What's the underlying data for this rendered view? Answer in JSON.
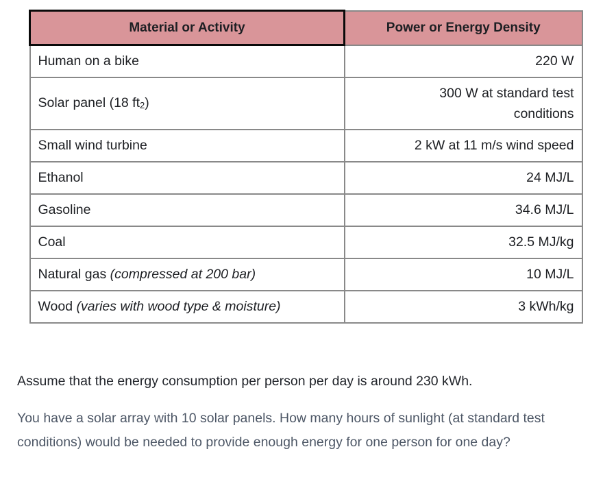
{
  "table": {
    "columns": [
      {
        "label": "Material or Activity"
      },
      {
        "label": "Power or Energy Density"
      }
    ],
    "rows": [
      {
        "material": "Human on a bike",
        "value": "220 W"
      },
      {
        "material": "Solar panel (18 ft",
        "material_sub": "2",
        "material_after": ")",
        "value": "300 W at standard test conditions"
      },
      {
        "material": "Small wind turbine",
        "value": "2 kW at 11 m/s wind speed"
      },
      {
        "material": "Ethanol",
        "value": "24 MJ/L"
      },
      {
        "material": "Gasoline",
        "value": "34.6 MJ/L"
      },
      {
        "material": "Coal",
        "value": "32.5 MJ/kg"
      },
      {
        "material": "Natural gas ",
        "material_note": "(compressed at 200 bar)",
        "value": "10 MJ/L"
      },
      {
        "material": "Wood ",
        "material_note": "(varies with wood type & moisture)",
        "value": "3 kWh/kg"
      }
    ]
  },
  "paragraphs": {
    "assumption": "Assume that the energy consumption per person per day is around 230 kWh.",
    "question": "You have a solar array with 10 solar panels. How many hours of sunlight (at standard test conditions) would be needed to provide enough energy for one person for one day?"
  },
  "colors": {
    "header_bg": "#d99599",
    "header_cell_border": "#0a0a0a",
    "grid_border": "#898989",
    "table_text": "#1d1f23",
    "assumption_text": "#22252b",
    "question_text": "#4d5766"
  }
}
